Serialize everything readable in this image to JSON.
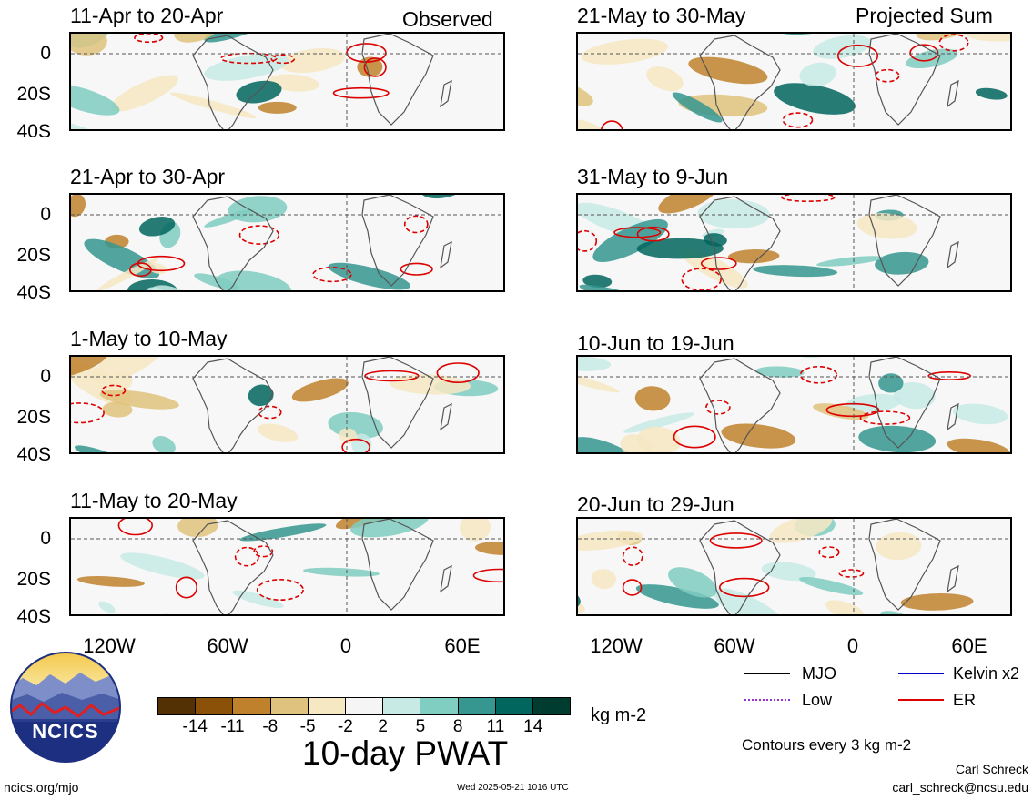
{
  "panels_left": [
    {
      "title": "11-Apr to 20-Apr",
      "tag": "Observed"
    },
    {
      "title": "21-Apr to 30-Apr",
      "tag": ""
    },
    {
      "title": "1-May to 10-May",
      "tag": ""
    },
    {
      "title": "11-May to 20-May",
      "tag": ""
    }
  ],
  "panels_right": [
    {
      "title": "21-May to 30-May",
      "tag": "Projected Sum"
    },
    {
      "title": "31-May to 9-Jun",
      "tag": ""
    },
    {
      "title": "10-Jun to 19-Jun",
      "tag": ""
    },
    {
      "title": "20-Jun to 29-Jun",
      "tag": ""
    }
  ],
  "y_ticks": [
    "0",
    "20S",
    "40S"
  ],
  "x_ticks": [
    "120W",
    "60W",
    "0",
    "60E"
  ],
  "colorbar": {
    "labels": [
      "-14",
      "-11",
      "-8",
      "-5",
      "-2",
      "2",
      "5",
      "8",
      "11",
      "14"
    ],
    "colors": [
      "#543005",
      "#8c5109",
      "#bf812c",
      "#dfc27d",
      "#f6e8c3",
      "#f5f5f5",
      "#c7eae5",
      "#80cdc1",
      "#35978f",
      "#01665e",
      "#003c30"
    ],
    "units": "kg m-2",
    "title": "10-day PWAT"
  },
  "legend": {
    "items": [
      {
        "label": "MJO",
        "color": "#000000",
        "style": "solid"
      },
      {
        "label": "Kelvin x2",
        "color": "#0000cc",
        "style": "solid"
      },
      {
        "label": "Low",
        "color": "#9933cc",
        "style": "dotted"
      },
      {
        "label": "ER",
        "color": "#dd0000",
        "style": "solid"
      }
    ],
    "note": "Contours every 3 kg m-2"
  },
  "logo": {
    "text": "NCICS"
  },
  "footer": {
    "url": "ncics.org/mjo",
    "timestamp": "Wed 2025-05-21 1016 UTC",
    "author": "Carl Schreck",
    "email": "carl_schreck@ncsu.edu"
  }
}
